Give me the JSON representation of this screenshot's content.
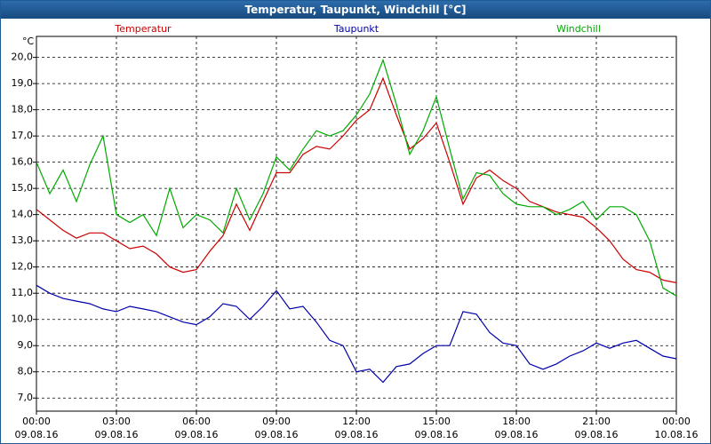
{
  "chart_data": {
    "type": "line",
    "title": "Temperatur, Taupunkt, Windchill [°C]",
    "y_label": "°C",
    "x": [
      0,
      0.5,
      1,
      1.5,
      2,
      2.5,
      3,
      3.5,
      4,
      4.5,
      5,
      5.5,
      6,
      6.5,
      7,
      7.5,
      8,
      8.5,
      9,
      9.5,
      10,
      10.5,
      11,
      11.5,
      12,
      12.5,
      13,
      13.5,
      14,
      14.5,
      15,
      15.5,
      16,
      16.5,
      17,
      17.5,
      18,
      18.5,
      19,
      19.5,
      20,
      20.5,
      21,
      21.5,
      22,
      22.5,
      23,
      23.5,
      24
    ],
    "xlim": [
      0,
      24
    ],
    "xticks": [
      {
        "value": 0,
        "label": "00:00\n09.08.16"
      },
      {
        "value": 3,
        "label": "03:00\n09.08.16"
      },
      {
        "value": 6,
        "label": "06:00\n09.08.16"
      },
      {
        "value": 9,
        "label": "09:00\n09.08.16"
      },
      {
        "value": 12,
        "label": "12:00\n09.08.16"
      },
      {
        "value": 15,
        "label": "15:00\n09.08.16"
      },
      {
        "value": 18,
        "label": "18:00\n09.08.16"
      },
      {
        "value": 21,
        "label": "21:00\n09.08.16"
      },
      {
        "value": 24,
        "label": "00:00\n10.08.16"
      }
    ],
    "ylim": [
      6.5,
      20.8
    ],
    "yticks": [
      {
        "value": 7,
        "label": "7,0"
      },
      {
        "value": 8,
        "label": "8,0"
      },
      {
        "value": 9,
        "label": "9,0"
      },
      {
        "value": 10,
        "label": "10,0"
      },
      {
        "value": 11,
        "label": "11,0"
      },
      {
        "value": 12,
        "label": "12,0"
      },
      {
        "value": 13,
        "label": "13,0"
      },
      {
        "value": 14,
        "label": "14,0"
      },
      {
        "value": 15,
        "label": "15,0"
      },
      {
        "value": 16,
        "label": "16,0"
      },
      {
        "value": 17,
        "label": "17,0"
      },
      {
        "value": 18,
        "label": "18,0"
      },
      {
        "value": 19,
        "label": "19,0"
      },
      {
        "value": 20,
        "label": "20,0"
      }
    ],
    "grid": true,
    "series": [
      {
        "name": "Temperatur",
        "color": "#cc0000",
        "values": [
          14.2,
          13.8,
          13.4,
          13.1,
          13.3,
          13.3,
          13.0,
          12.7,
          12.8,
          12.5,
          12.0,
          11.8,
          11.9,
          12.6,
          13.2,
          14.4,
          13.4,
          14.5,
          15.6,
          15.6,
          16.3,
          16.6,
          16.5,
          17.0,
          17.6,
          18.0,
          19.2,
          17.8,
          16.5,
          16.9,
          17.5,
          16.0,
          14.4,
          15.4,
          15.7,
          15.3,
          15.0,
          14.5,
          14.3,
          14.1,
          14.0,
          13.9,
          13.5,
          13.0,
          12.3,
          11.9,
          11.8,
          11.5,
          11.4
        ]
      },
      {
        "name": "Taupunkt",
        "color": "#0000aa",
        "values": [
          11.3,
          11.0,
          10.8,
          10.7,
          10.6,
          10.4,
          10.3,
          10.5,
          10.4,
          10.3,
          10.1,
          9.9,
          9.8,
          10.1,
          10.6,
          10.5,
          10.0,
          10.5,
          11.1,
          10.4,
          10.5,
          9.9,
          9.2,
          9.0,
          8.0,
          8.1,
          7.6,
          8.2,
          8.3,
          8.7,
          9.0,
          9.0,
          10.3,
          10.2,
          9.5,
          9.1,
          9.0,
          8.3,
          8.1,
          8.3,
          8.6,
          8.8,
          9.1,
          8.9,
          9.1,
          9.2,
          8.9,
          8.6,
          8.5
        ]
      },
      {
        "name": "Windchill",
        "color": "#00aa00",
        "values": [
          16.0,
          14.8,
          15.7,
          14.5,
          15.9,
          17.0,
          14.0,
          13.7,
          14.0,
          13.2,
          15.0,
          13.5,
          14.0,
          13.8,
          13.3,
          15.0,
          13.8,
          14.8,
          16.2,
          15.7,
          16.5,
          17.2,
          17.0,
          17.2,
          17.8,
          18.6,
          19.9,
          18.2,
          16.3,
          17.2,
          18.5,
          16.5,
          14.6,
          15.6,
          15.5,
          14.8,
          14.4,
          14.3,
          14.3,
          14.0,
          14.2,
          14.5,
          13.8,
          14.3,
          14.3,
          14.0,
          13.0,
          11.2,
          10.9
        ]
      }
    ]
  }
}
